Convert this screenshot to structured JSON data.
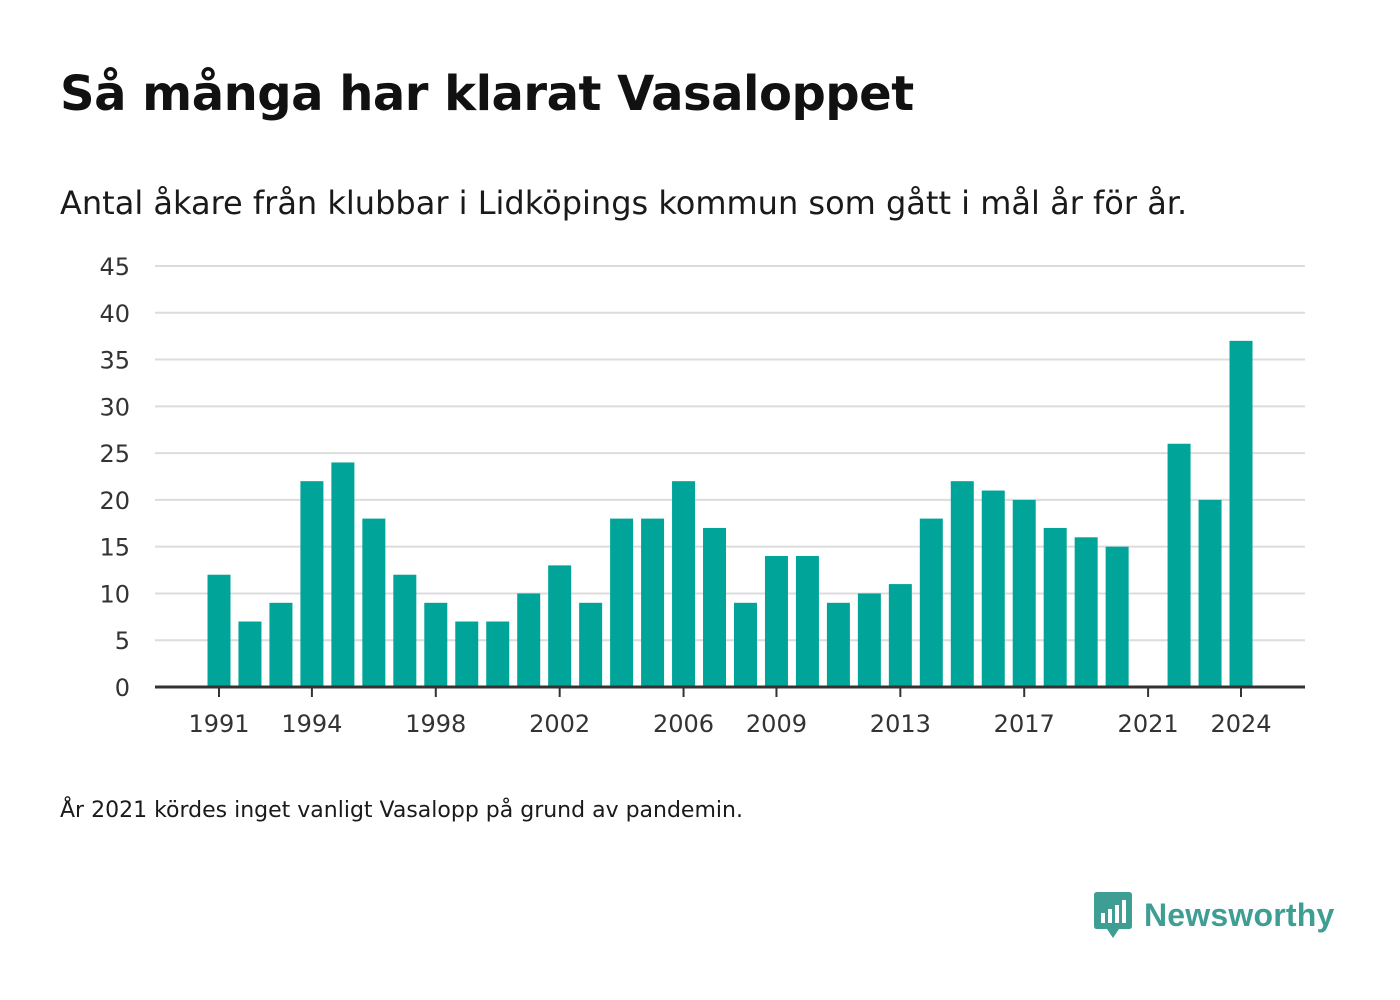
{
  "header": {
    "title": "Så många har klarat Vasaloppet",
    "subtitle": "Antal åkare från klubbar i Lidköpings kommun som gått i mål år för år."
  },
  "footnote": "År 2021 kördes inget vanligt Vasalopp på grund av pandemin.",
  "brand": {
    "name": "Newsworthy",
    "icon": "newsworthy-logo-icon",
    "color": "#3f9e93"
  },
  "chart_data": {
    "type": "bar",
    "title": "Så många har klarat Vasaloppet",
    "subtitle": "Antal åkare från klubbar i Lidköpings kommun som gått i mål år för år.",
    "xlabel": "",
    "ylabel": "",
    "x": [
      1991,
      1992,
      1993,
      1994,
      1995,
      1996,
      1997,
      1998,
      1999,
      2000,
      2001,
      2002,
      2003,
      2004,
      2005,
      2006,
      2007,
      2008,
      2009,
      2010,
      2011,
      2012,
      2013,
      2014,
      2015,
      2016,
      2017,
      2018,
      2019,
      2020,
      2021,
      2022,
      2023,
      2024
    ],
    "values": [
      12,
      7,
      9,
      22,
      24,
      18,
      12,
      9,
      7,
      7,
      10,
      13,
      9,
      18,
      18,
      22,
      17,
      9,
      14,
      14,
      9,
      10,
      11,
      18,
      22,
      21,
      20,
      17,
      16,
      15,
      0,
      26,
      20,
      37
    ],
    "x_ticks": [
      "1991",
      "1994",
      "1998",
      "2002",
      "2006",
      "2009",
      "2013",
      "2017",
      "2021",
      "2024"
    ],
    "y_ticks": [
      "0",
      "5",
      "10",
      "15",
      "20",
      "25",
      "30",
      "35",
      "40",
      "45"
    ],
    "ylim": [
      0,
      45
    ],
    "grid": true,
    "bar_color": "#00a499"
  }
}
